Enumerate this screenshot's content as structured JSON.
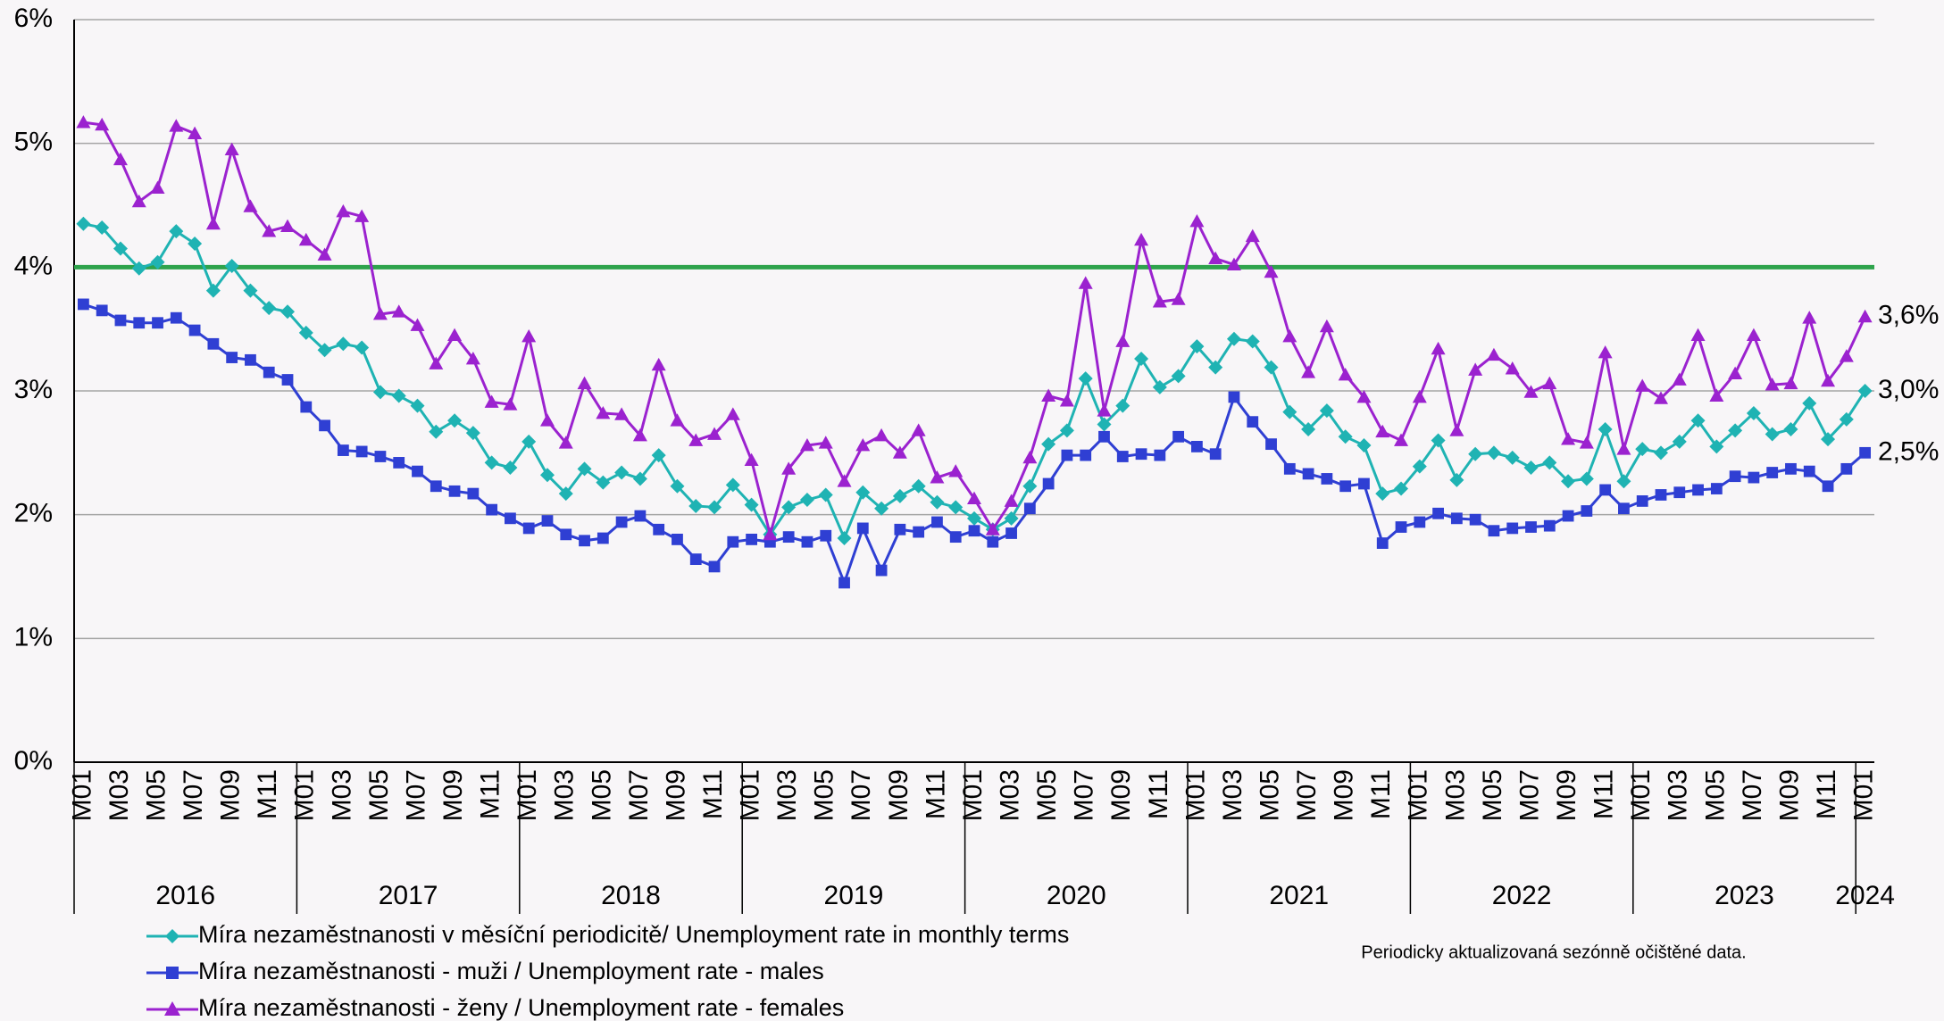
{
  "chart_data": {
    "type": "line",
    "categories": [
      "M01",
      null,
      "M03",
      null,
      "M05",
      null,
      "M07",
      null,
      "M09",
      null,
      "M11",
      null,
      "M01",
      null,
      "M03",
      null,
      "M05",
      null,
      "M07",
      null,
      "M09",
      null,
      "M11",
      null,
      "M01",
      null,
      "M03",
      null,
      "M05",
      null,
      "M07",
      null,
      "M09",
      null,
      "M11",
      null,
      "M01",
      null,
      "M03",
      null,
      "M05",
      null,
      "M07",
      null,
      "M09",
      null,
      "M11",
      null,
      "M01",
      null,
      "M03",
      null,
      "M05",
      null,
      "M07",
      null,
      "M09",
      null,
      "M11",
      null,
      "M01",
      null,
      "M03",
      null,
      "M05",
      null,
      "M07",
      null,
      "M09",
      null,
      "M11",
      null,
      "M01",
      null,
      "M03",
      null,
      "M05",
      null,
      "M07",
      null,
      "M09",
      null,
      "M11",
      null,
      "M01",
      null,
      "M03",
      null,
      "M05",
      null,
      "M07",
      null,
      "M09",
      null,
      "M11",
      null,
      "M01"
    ],
    "years": [
      "2016",
      "2017",
      "2018",
      "2019",
      "2020",
      "2021",
      "2022",
      "2023",
      "2024"
    ],
    "series": [
      {
        "name": "Míra nezaměstnanosti v měsíční periodicitě/ Unemployment rate in monthly terms",
        "color": "#1fb3b3",
        "marker": "diamond",
        "values": [
          4.35,
          4.32,
          4.15,
          3.99,
          4.04,
          4.29,
          4.19,
          3.81,
          4.01,
          3.81,
          3.67,
          3.64,
          3.47,
          3.33,
          3.38,
          3.35,
          2.99,
          2.96,
          2.88,
          2.67,
          2.76,
          2.66,
          2.42,
          2.38,
          2.59,
          2.32,
          2.17,
          2.37,
          2.26,
          2.34,
          2.29,
          2.48,
          2.23,
          2.07,
          2.06,
          2.24,
          2.08,
          1.84,
          2.06,
          2.12,
          2.16,
          1.81,
          2.18,
          2.05,
          2.15,
          2.23,
          2.1,
          2.06,
          1.97,
          1.88,
          1.97,
          2.23,
          2.57,
          2.68,
          3.1,
          2.73,
          2.88,
          3.26,
          3.03,
          3.12,
          3.36,
          3.19,
          3.42,
          3.4,
          3.19,
          2.83,
          2.69,
          2.84,
          2.63,
          2.56,
          2.17,
          2.21,
          2.39,
          2.6,
          2.28,
          2.49,
          2.5,
          2.46,
          2.38,
          2.42,
          2.27,
          2.29,
          2.69,
          2.27,
          2.53,
          2.5,
          2.59,
          2.76,
          2.55,
          2.68,
          2.82,
          2.65,
          2.69,
          2.9,
          2.61,
          2.77,
          3.0
        ],
        "end_label": "3,0%"
      },
      {
        "name": "Míra nezaměstnanosti - muži / Unemployment rate - males",
        "color": "#2f3fd3",
        "marker": "square",
        "values": [
          3.7,
          3.65,
          3.57,
          3.55,
          3.55,
          3.59,
          3.49,
          3.38,
          3.27,
          3.25,
          3.15,
          3.09,
          2.87,
          2.72,
          2.52,
          2.51,
          2.47,
          2.42,
          2.35,
          2.23,
          2.19,
          2.17,
          2.04,
          1.97,
          1.89,
          1.95,
          1.84,
          1.79,
          1.81,
          1.94,
          1.99,
          1.88,
          1.8,
          1.64,
          1.58,
          1.78,
          1.8,
          1.78,
          1.82,
          1.78,
          1.83,
          1.45,
          1.89,
          1.55,
          1.88,
          1.86,
          1.94,
          1.82,
          1.87,
          1.78,
          1.85,
          2.05,
          2.25,
          2.48,
          2.48,
          2.63,
          2.47,
          2.49,
          2.48,
          2.63,
          2.55,
          2.49,
          2.95,
          2.75,
          2.57,
          2.37,
          2.33,
          2.29,
          2.23,
          2.25,
          1.77,
          1.9,
          1.94,
          2.01,
          1.97,
          1.96,
          1.87,
          1.89,
          1.9,
          1.91,
          1.99,
          2.03,
          2.2,
          2.05,
          2.11,
          2.16,
          2.18,
          2.2,
          2.21,
          2.31,
          2.3,
          2.34,
          2.37,
          2.35,
          2.23,
          2.37,
          2.5
        ],
        "end_label": "2,5%"
      },
      {
        "name": "Míra nezaměstnanosti - ženy / Unemployment rate - females",
        "color": "#9b22cf",
        "marker": "triangle",
        "values": [
          5.17,
          5.15,
          4.87,
          4.53,
          4.64,
          5.14,
          5.08,
          4.35,
          4.95,
          4.49,
          4.29,
          4.33,
          4.22,
          4.1,
          4.45,
          4.41,
          3.62,
          3.64,
          3.53,
          3.22,
          3.45,
          3.26,
          2.91,
          2.89,
          3.44,
          2.76,
          2.58,
          3.06,
          2.82,
          2.81,
          2.64,
          3.21,
          2.76,
          2.6,
          2.65,
          2.81,
          2.44,
          1.84,
          2.37,
          2.56,
          2.58,
          2.27,
          2.56,
          2.64,
          2.5,
          2.68,
          2.3,
          2.35,
          2.13,
          1.88,
          2.11,
          2.46,
          2.96,
          2.92,
          3.87,
          2.84,
          3.4,
          4.22,
          3.72,
          3.74,
          4.37,
          4.07,
          4.02,
          4.25,
          3.96,
          3.44,
          3.15,
          3.52,
          3.13,
          2.95,
          2.67,
          2.6,
          2.95,
          3.34,
          2.68,
          3.17,
          3.29,
          3.18,
          2.99,
          3.06,
          2.61,
          2.58,
          3.31,
          2.53,
          3.04,
          2.94,
          3.09,
          3.45,
          2.96,
          3.14,
          3.45,
          3.05,
          3.06,
          3.59,
          3.08,
          3.28,
          3.6
        ],
        "end_label": "3,6%"
      }
    ],
    "reference_line": {
      "value": 4,
      "color": "#2ea34c"
    },
    "ylim": [
      0,
      6
    ],
    "yticks": [
      {
        "value": 0,
        "label": "0%"
      },
      {
        "value": 1,
        "label": "1%"
      },
      {
        "value": 2,
        "label": "2%"
      },
      {
        "value": 3,
        "label": "3%"
      },
      {
        "value": 4,
        "label": "4%"
      },
      {
        "value": 5,
        "label": "5%"
      },
      {
        "value": 6,
        "label": "6%"
      }
    ],
    "grid": true,
    "legend": "bottom-left",
    "note": "Periodicky aktualizovaná sezónně očištěné data."
  }
}
